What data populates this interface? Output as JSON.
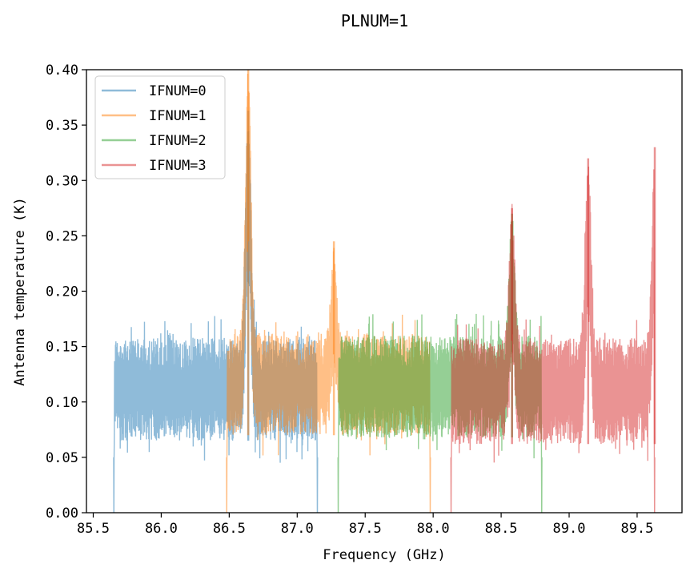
{
  "chart_data": {
    "type": "line",
    "title": "PLNUM=1",
    "xlabel": "Frequency (GHz)",
    "ylabel": "Antenna temperature (K)",
    "xlim": [
      85.45,
      89.83
    ],
    "ylim": [
      0.0,
      0.4
    ],
    "xticks": [
      "85.5",
      "86.0",
      "86.5",
      "87.0",
      "87.5",
      "88.0",
      "88.5",
      "89.0",
      "89.5"
    ],
    "yticks": [
      "0.00",
      "0.05",
      "0.10",
      "0.15",
      "0.20",
      "0.25",
      "0.30",
      "0.35",
      "0.40"
    ],
    "grid": false,
    "legend_position": "upper-left",
    "series": [
      {
        "name": "IFNUM=0",
        "color": "#1f77b4",
        "opacity": 0.5,
        "x_range": [
          85.65,
          87.15
        ],
        "band_low": 0.065,
        "band_high": 0.158,
        "x": [
          85.65,
          85.8,
          86.0,
          86.2,
          86.4,
          86.5,
          86.64,
          86.8,
          87.0,
          87.15
        ],
        "y": [
          0.11,
          0.115,
          0.112,
          0.11,
          0.108,
          0.11,
          0.363,
          0.108,
          0.11,
          0.11
        ]
      },
      {
        "name": "IFNUM=1",
        "color": "#ff7f0e",
        "opacity": 0.5,
        "x_range": [
          86.48,
          87.98
        ],
        "band_low": 0.07,
        "band_high": 0.162,
        "x": [
          86.48,
          86.64,
          86.8,
          87.0,
          87.27,
          87.5,
          87.7,
          87.98
        ],
        "y": [
          0.11,
          0.4,
          0.118,
          0.12,
          0.245,
          0.115,
          0.112,
          0.11
        ]
      },
      {
        "name": "IFNUM=2",
        "color": "#2ca02c",
        "opacity": 0.5,
        "x_range": [
          87.3,
          88.8
        ],
        "band_low": 0.068,
        "band_high": 0.16,
        "x": [
          87.3,
          87.5,
          87.7,
          88.0,
          88.3,
          88.58,
          88.8
        ],
        "y": [
          0.11,
          0.112,
          0.115,
          0.11,
          0.108,
          0.27,
          0.11
        ]
      },
      {
        "name": "IFNUM=3",
        "color": "#d62728",
        "opacity": 0.5,
        "x_range": [
          88.13,
          89.63
        ],
        "band_low": 0.062,
        "band_high": 0.158,
        "x": [
          88.13,
          88.3,
          88.58,
          88.8,
          89.0,
          89.14,
          89.3,
          89.5,
          89.63
        ],
        "y": [
          0.11,
          0.112,
          0.275,
          0.11,
          0.115,
          0.32,
          0.112,
          0.11,
          0.33
        ]
      }
    ]
  }
}
